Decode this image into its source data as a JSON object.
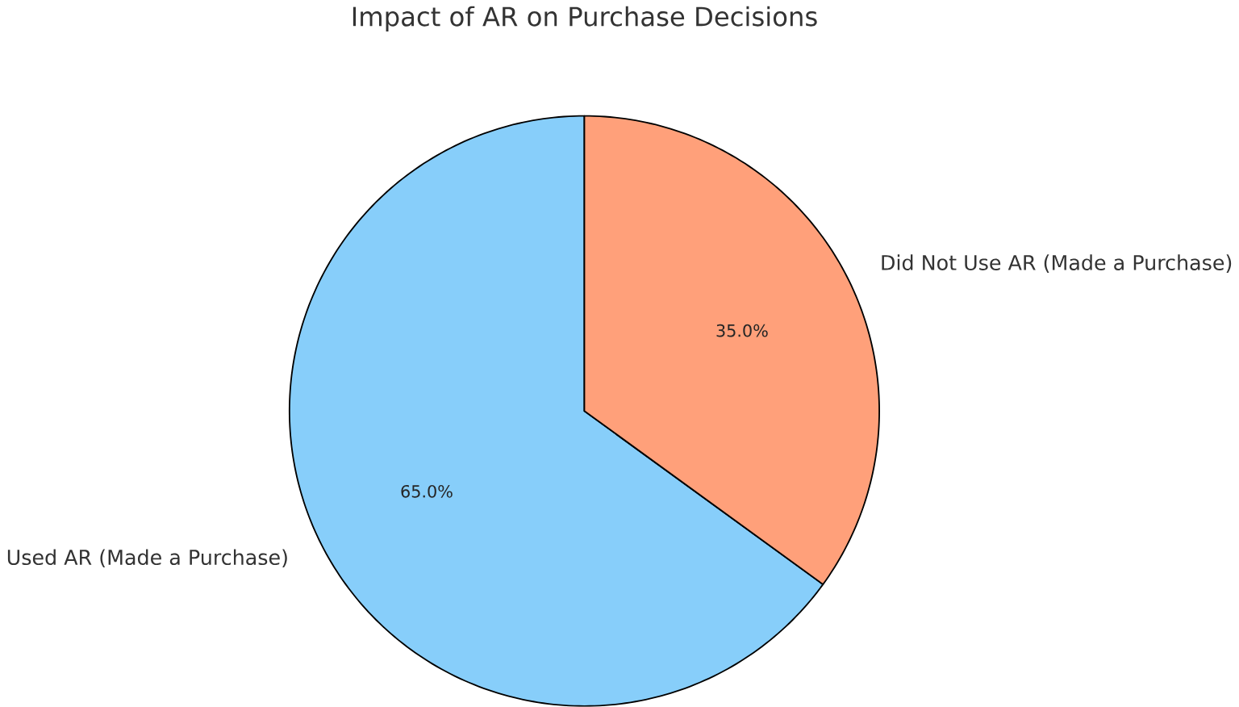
{
  "chart_data": {
    "type": "pie",
    "title": "Impact of AR on Purchase Decisions",
    "categories": [
      "Used AR (Made a Purchase)",
      "Did Not Use AR (Made a Purchase)"
    ],
    "values": [
      65,
      35
    ],
    "colors": [
      "#87cefa",
      "#ffa07a"
    ],
    "value_labels": [
      "65.0%",
      "35.0%"
    ]
  }
}
